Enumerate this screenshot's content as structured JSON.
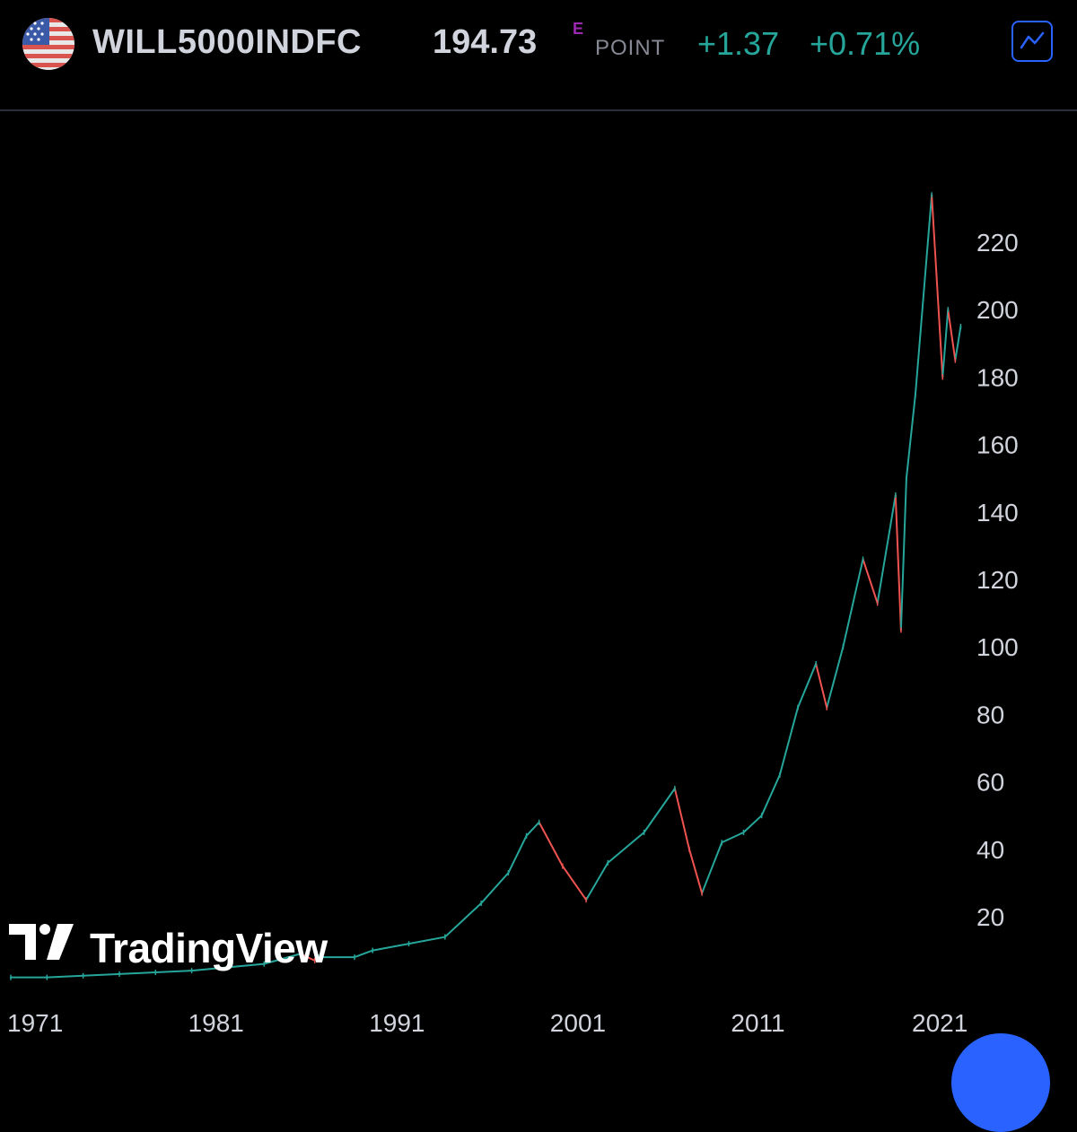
{
  "header": {
    "symbol": "WILL5000INDFC",
    "price": "194.73",
    "price_flag": "E",
    "unit": "POINT",
    "change": "+1.37",
    "change_percent": "+0.71%",
    "flag_icon": "us-flag-icon",
    "chart_button_icon": "line-chart-icon"
  },
  "colors": {
    "up": "#26a69a",
    "down": "#ef5350",
    "accent": "#2962ff",
    "text": "#d1d4dc",
    "background": "#000000"
  },
  "watermark": {
    "text": "TradingView"
  },
  "chart_data": {
    "type": "line",
    "title": "",
    "xlabel": "",
    "ylabel": "",
    "x_ticks": [
      "1971",
      "1981",
      "1991",
      "2001",
      "2011",
      "2021"
    ],
    "y_ticks": [
      "20",
      "40",
      "60",
      "80",
      "100",
      "120",
      "140",
      "160",
      "180",
      "200",
      "220"
    ],
    "xlim": [
      1971,
      2023.5
    ],
    "ylim": [
      0,
      236
    ],
    "series": [
      {
        "x": [
          1971,
          1973,
          1975,
          1977,
          1979,
          1981,
          1983,
          1985,
          1987,
          1987.8,
          1988,
          1990,
          1991,
          1993,
          1995,
          1997,
          1998.5,
          1999.5,
          2000.2,
          2001.5,
          2002.8,
          2004,
          2006,
          2007.7,
          2008.5,
          2009.2,
          2010.3,
          2011.5,
          2012.5,
          2013.5,
          2014.5,
          2015.5,
          2016.1,
          2017,
          2018.1,
          2018.9,
          2019.9,
          2020.2,
          2020.5,
          2021,
          2021.9,
          2022.5,
          2022.8,
          2023.2,
          2023.5
        ],
        "y": [
          2,
          2,
          2.5,
          3,
          3.5,
          4,
          5,
          6,
          9,
          7,
          8,
          8,
          10,
          12,
          14,
          24,
          33,
          44,
          48,
          35,
          25,
          36,
          45,
          58,
          40,
          27,
          42,
          45,
          50,
          62,
          82,
          95,
          82,
          100,
          126,
          113,
          145,
          105,
          150,
          175,
          234,
          180,
          200,
          185,
          195
        ]
      }
    ]
  }
}
